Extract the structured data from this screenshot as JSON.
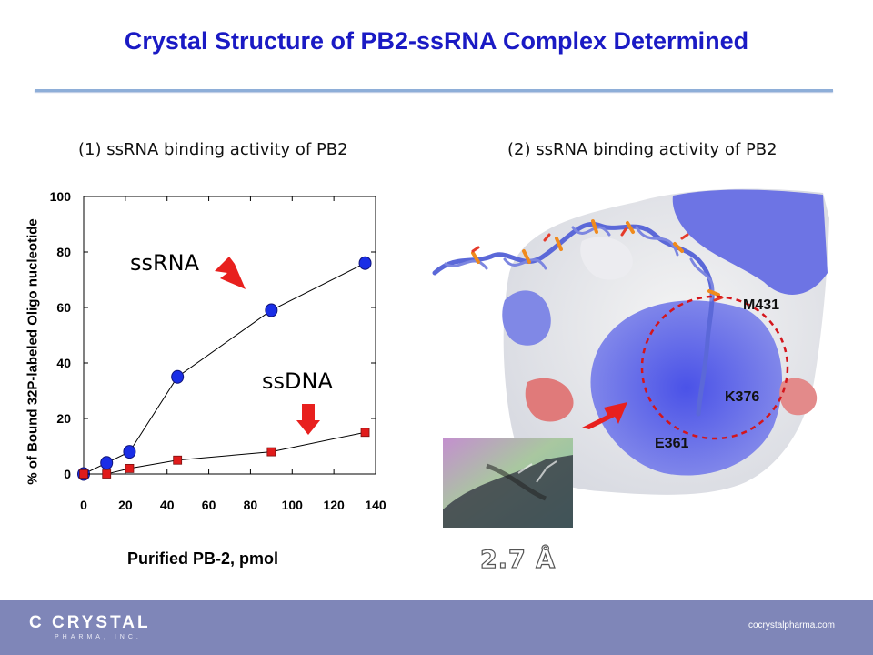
{
  "slide": {
    "title": "Crystal Structure of PB2-ssRNA Complex Determined",
    "left_panel_title": "(1) ssRNA binding activity of PB2",
    "right_panel_title": "(2) ssRNA binding activity of PB2",
    "resolution": "2.7 Å",
    "residues": [
      "M431",
      "K376",
      "E361"
    ]
  },
  "footer": {
    "logo_text": "C  CRYSTAL",
    "logo_sub": "PHARMA, INC.",
    "url": "cocrystalpharma.com"
  },
  "colors": {
    "title": "#1a1ac4",
    "ssrna": "#1a2ee6",
    "ssdna": "#e01b1b",
    "arrow": "#e8201e",
    "footer": "#7f86b8"
  },
  "chart_data": {
    "type": "line",
    "xlabel": "Purified PB-2, pmol",
    "ylabel": "% of Bound 32P-labeled Oligo nucleotide",
    "xlim": [
      0,
      140
    ],
    "ylim": [
      0,
      100
    ],
    "xticks": [
      0,
      20,
      40,
      60,
      80,
      100,
      120,
      140
    ],
    "yticks": [
      0,
      20,
      40,
      60,
      80,
      100
    ],
    "grid": false,
    "series": [
      {
        "name": "ssRNA",
        "x": [
          0,
          11,
          22,
          45,
          90,
          135
        ],
        "y": [
          0,
          4,
          8,
          35,
          59,
          76
        ]
      },
      {
        "name": "ssDNA",
        "x": [
          0,
          11,
          22,
          45,
          90,
          135
        ],
        "y": [
          0,
          0,
          2,
          5,
          8,
          15
        ]
      }
    ]
  }
}
